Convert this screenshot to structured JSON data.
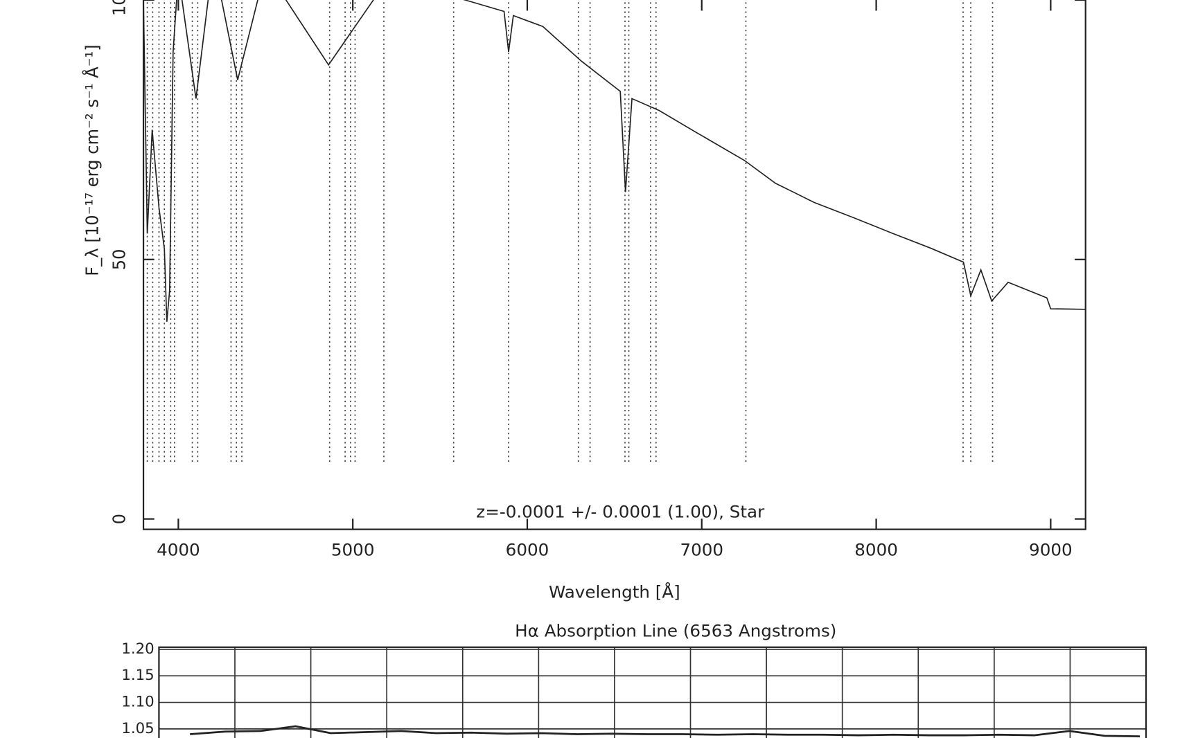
{
  "chart_data": [
    {
      "type": "line",
      "x_label": "Wavelength [Å]",
      "y_label": "F_λ [10⁻¹⁷ erg cm⁻² s⁻¹ Å⁻¹]",
      "annotation": "z=-0.0001 +/- 0.0001 (1.00), Star",
      "xlim": [
        3800,
        9200
      ],
      "xticks": [
        4000,
        5000,
        6000,
        7000,
        8000,
        9000
      ],
      "ylim": [
        -2,
        100
      ],
      "yticks": [
        0,
        50,
        100
      ],
      "series": [
        {
          "color": "#222222",
          "x": [
            3800,
            3822,
            3850,
            3889,
            3920,
            3934,
            3950,
            3970,
            4000,
            4101,
            4200,
            4340,
            4500,
            4861,
            5200,
            5644,
            5867,
            5893,
            5920,
            6089,
            6311,
            6533,
            6563,
            6600,
            6756,
            6978,
            7244,
            7422,
            7644,
            7867,
            8089,
            8311,
            8500,
            8542,
            8600,
            8662,
            8756,
            8978,
            9000,
            9200
          ],
          "values": [
            100,
            55,
            75,
            60,
            52,
            38,
            44,
            90,
            105,
            81,
            108,
            84.6,
            106,
            87.5,
            104,
            100,
            97.8,
            90,
            97,
            94.9,
            88.2,
            82.4,
            63,
            81,
            78.7,
            74.3,
            69.1,
            64.7,
            61.0,
            58.1,
            55.1,
            52.2,
            49.5,
            43,
            48,
            42,
            45.6,
            42.6,
            40.5,
            40.4
          ]
        }
      ],
      "reference_lines": [
        3822,
        3853,
        3889,
        3920,
        3956,
        3978,
        4080,
        4111,
        4302,
        4333,
        4364,
        4867,
        4956,
        4987,
        5013,
        5178,
        5578,
        5893,
        6293,
        6360,
        6560,
        6582,
        6707,
        6738,
        7253,
        8498,
        8542,
        8667
      ]
    },
    {
      "type": "line",
      "title": "Hα Absorption Line (6563 Angstroms)",
      "ylim": [
        1.032,
        1.204
      ],
      "yticks": [
        {
          "value": 1.2,
          "label": "1.20"
        },
        {
          "value": 1.15,
          "label": "1.15"
        },
        {
          "value": 1.1,
          "label": "1.10"
        },
        {
          "value": 1.05,
          "label": "1.05"
        }
      ],
      "grid": true,
      "series": [
        {
          "color": "#222222",
          "values": [
            1.04,
            1.045,
            1.046,
            1.055,
            1.042,
            1.044,
            1.046,
            1.042,
            1.043,
            1.041,
            1.042,
            1.04,
            1.041,
            1.04,
            1.04,
            1.039,
            1.04,
            1.039,
            1.039,
            1.038,
            1.039,
            1.038,
            1.038,
            1.039,
            1.038,
            1.046,
            1.037,
            1.036
          ]
        }
      ]
    }
  ]
}
